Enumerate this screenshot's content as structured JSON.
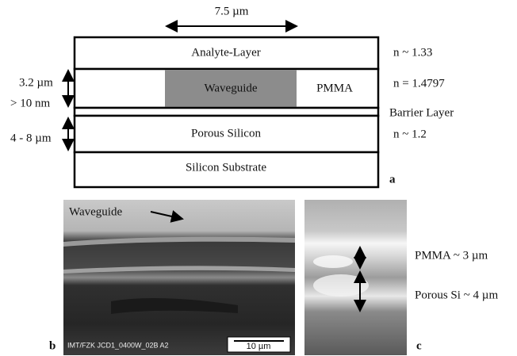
{
  "panel_a": {
    "width_label": "7.5 µm",
    "layers": [
      "Analyte-Layer",
      "Waveguide",
      "PMMA",
      "Porous Silicon",
      "Silicon Substrate"
    ],
    "left_labels": [
      "3.2 µm",
      "> 10 nm",
      "4 - 8 µm"
    ],
    "right_labels": [
      "n ~ 1.33",
      "n = 1.4797",
      "Barrier Layer",
      "n ~ 1.2"
    ],
    "letter": "a"
  },
  "panel_b": {
    "annotation": "Waveguide",
    "footer": "IMT/FZK  JCD1_0400W_02B  A2",
    "scale": "10 µm",
    "letter": "b"
  },
  "panel_c": {
    "labels": [
      "PMMA ~ 3 µm",
      "Porous Si ~ 4 µm"
    ],
    "letter": "c"
  }
}
